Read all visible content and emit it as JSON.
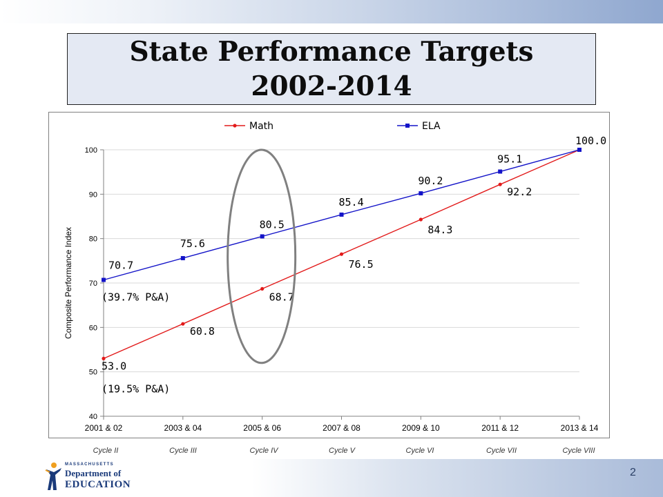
{
  "slide": {
    "title_line1": "State Performance Targets",
    "title_line2": "2002-2014",
    "page_number": "2",
    "logo": {
      "line1": "MASSACHUSETTS",
      "line2": "Department of",
      "line3": "EDUCATION"
    },
    "cycles": [
      "Cycle II",
      "Cycle III",
      "Cycle IV",
      "Cycle V",
      "Cycle VI",
      "Cycle VII",
      "Cycle VIII"
    ]
  },
  "chart_data": {
    "type": "line",
    "title": "",
    "xlabel": "",
    "ylabel": "Composite Performance Index",
    "ylim": [
      40,
      100
    ],
    "yticks": [
      40,
      50,
      60,
      70,
      80,
      90,
      100
    ],
    "categories": [
      "2001 & 02",
      "2003 & 04",
      "2005 & 06",
      "2007 & 08",
      "2009 & 10",
      "2011 & 12",
      "2013 & 14"
    ],
    "series": [
      {
        "name": "Math",
        "color": "#e21a1a",
        "values": [
          53.0,
          60.8,
          68.7,
          76.5,
          84.3,
          92.2,
          100.0
        ],
        "labels": [
          "53.0",
          "60.8",
          "68.7",
          "76.5",
          "84.3",
          "92.2",
          "100.0"
        ]
      },
      {
        "name": "ELA",
        "color": "#1313c8",
        "values": [
          70.7,
          75.6,
          80.5,
          85.4,
          90.2,
          95.1,
          100.0
        ],
        "labels": [
          "70.7",
          "75.6",
          "80.5",
          "85.4",
          "90.2",
          "95.1",
          ""
        ]
      }
    ],
    "legend": "top",
    "grid": true,
    "annotations": [
      {
        "text": "(39.7% P&A)",
        "series": "ELA",
        "category": "2001 & 02"
      },
      {
        "text": "(19.5% P&A)",
        "series": "Math",
        "category": "2001 & 02"
      }
    ],
    "highlight": {
      "shape": "ellipse",
      "category": "2005 & 06",
      "color": "#808080"
    }
  }
}
